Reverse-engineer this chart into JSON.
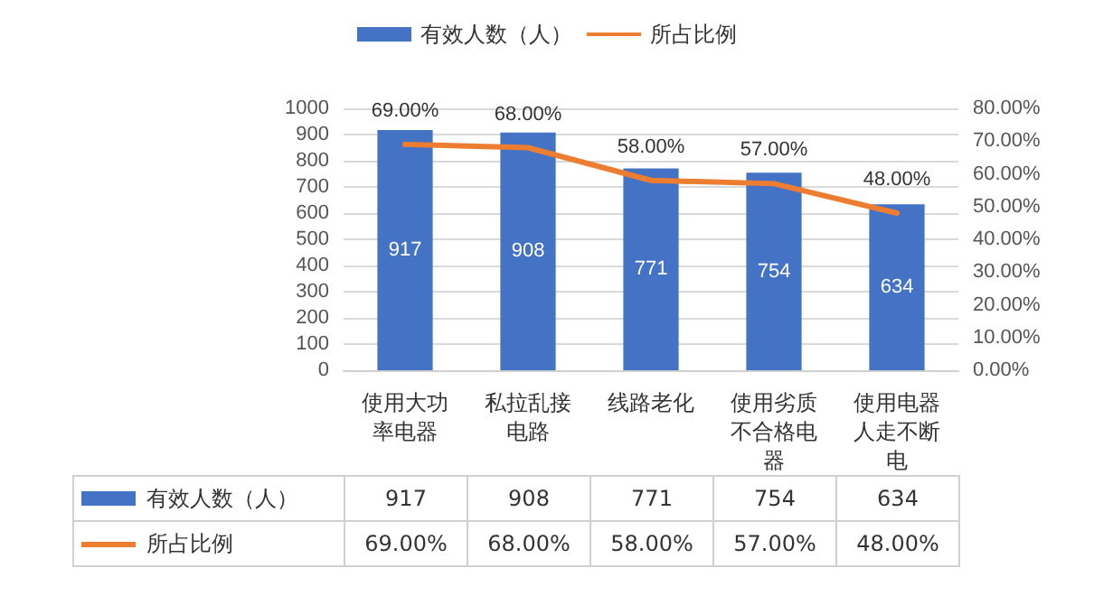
{
  "chart_data": {
    "type": "bar",
    "categories": [
      "使用大功率电器",
      "私拉乱接电路",
      "线路老化",
      "使用劣质不合格电器",
      "使用电器人走不断电"
    ],
    "series": [
      {
        "name": "有效人数（人）",
        "color": "#4472c4",
        "values": [
          917,
          908,
          771,
          754,
          634
        ],
        "value_labels": [
          "917",
          "908",
          "771",
          "754",
          "634"
        ]
      },
      {
        "name": "所占比例",
        "type": "line",
        "axis": "y2",
        "color": "#ed7d31",
        "values": [
          69,
          68,
          58,
          57,
          48
        ],
        "value_labels": [
          "69.00%",
          "68.00%",
          "58.00%",
          "57.00%",
          "48.00%"
        ]
      }
    ],
    "ylim": [
      0,
      1000
    ],
    "yticks": [
      0,
      100,
      200,
      300,
      400,
      500,
      600,
      700,
      800,
      900,
      1000
    ],
    "y2lim": [
      0,
      80
    ],
    "y2ticks": [
      {
        "value": 0,
        "label": "0.00%"
      },
      {
        "value": 10,
        "label": "10.00%"
      },
      {
        "value": 20,
        "label": "20.00%"
      },
      {
        "value": 30,
        "label": "30.00%"
      },
      {
        "value": 40,
        "label": "40.00%"
      },
      {
        "value": 50,
        "label": "50.00%"
      },
      {
        "value": 60,
        "label": "60.00%"
      },
      {
        "value": 70,
        "label": "70.00%"
      },
      {
        "value": 80,
        "label": "80.00%"
      }
    ],
    "grid": "y",
    "legend": "top",
    "marker": "none"
  }
}
